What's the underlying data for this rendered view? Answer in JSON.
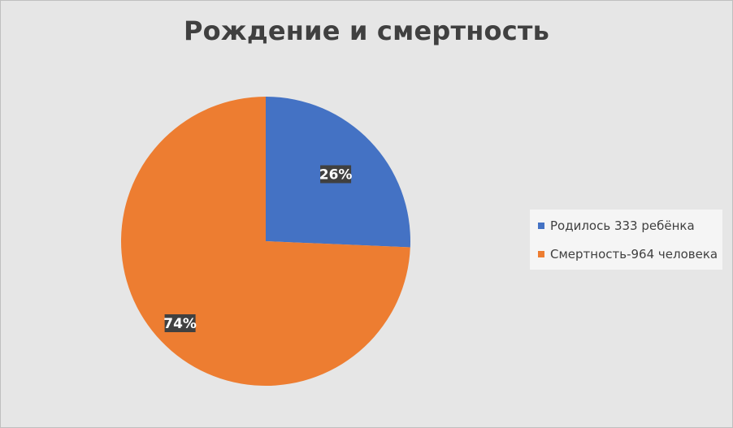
{
  "chart_data": {
    "type": "pie",
    "title": "Рождение и смертность",
    "categories": [
      "Родилось 333 ребёнка",
      "Смертность-964 человека"
    ],
    "values": [
      333,
      964
    ],
    "data_labels": [
      "26%",
      "74%"
    ],
    "colors": [
      "#4472c4",
      "#ed7d31"
    ],
    "legend_position": "right",
    "start_angle_deg": 0,
    "direction": "clockwise"
  }
}
